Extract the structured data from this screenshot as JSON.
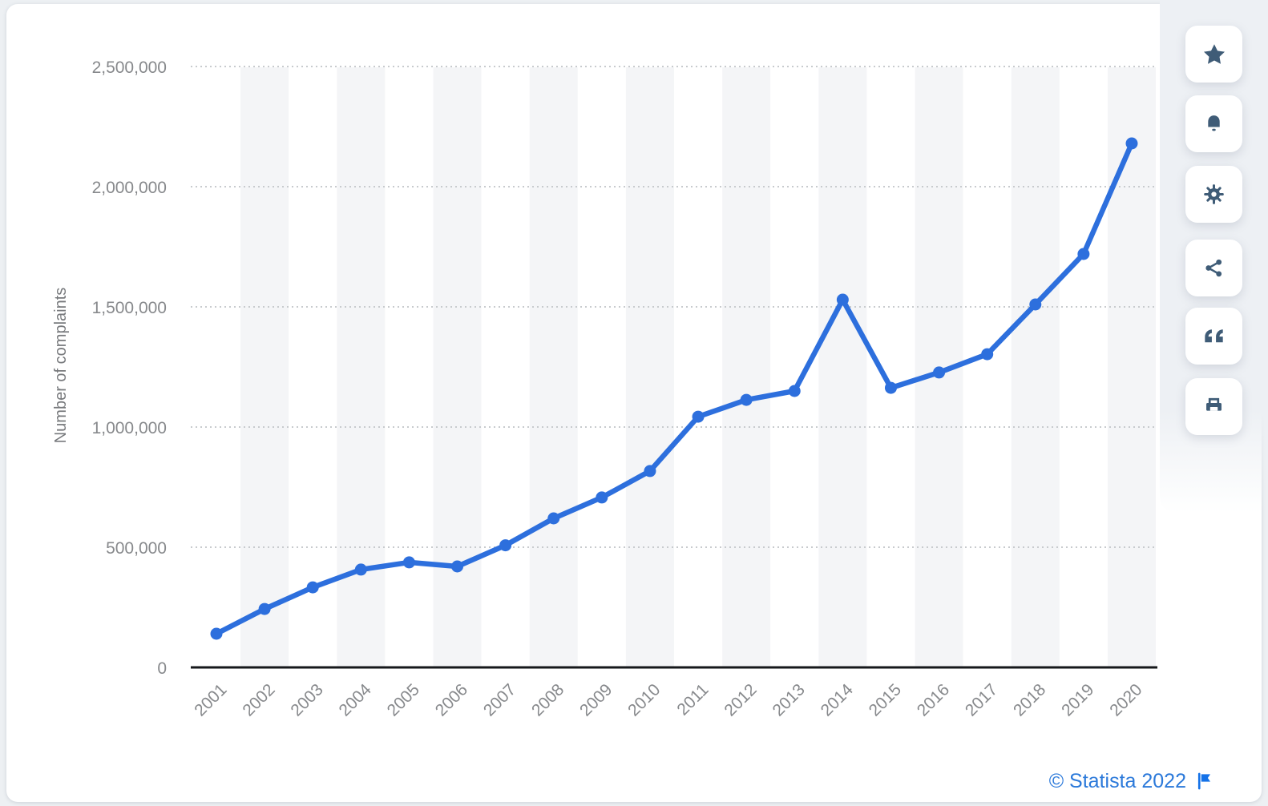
{
  "colors": {
    "page_background": "#edf0f3",
    "card_background": "#ffffff",
    "plot_band": "#f4f5f7",
    "gridline": "#c8cbce",
    "axis_line": "#16181b",
    "tick_label": "#87898c",
    "axis_title": "#77797c",
    "series_line": "#2d6fdd",
    "toolbar_icon": "#3f5c77",
    "footer_link": "#2b79da",
    "footer_flag": "#1472e8"
  },
  "chart_data": {
    "type": "line",
    "ylabel": "Number of complaints",
    "xlabel": "",
    "x_labels": [
      "2001",
      "2002",
      "2003",
      "2004",
      "2005",
      "2006",
      "2007",
      "2008",
      "2009",
      "2010",
      "2011",
      "2012",
      "2013",
      "2014",
      "2015",
      "2016",
      "2017",
      "2018",
      "2019",
      "2020"
    ],
    "series": [
      {
        "name": "Number of complaints",
        "values": [
          140000,
          243000,
          333000,
          407000,
          437000,
          420000,
          508000,
          620000,
          707000,
          817000,
          1043000,
          1113000,
          1150000,
          1530000,
          1163000,
          1227000,
          1303000,
          1510000,
          1720000,
          2180000
        ]
      }
    ],
    "ylim": [
      0,
      2500000
    ],
    "y_ticks": [
      {
        "value": 0,
        "label": "0"
      },
      {
        "value": 500000,
        "label": "500,000"
      },
      {
        "value": 1000000,
        "label": "1,000,000"
      },
      {
        "value": 1500000,
        "label": "1,500,000"
      },
      {
        "value": 2000000,
        "label": "2,000,000"
      },
      {
        "value": 2500000,
        "label": "2,500,000"
      }
    ],
    "grid": "horizontal-dotted",
    "legend": "none",
    "marker": "circle"
  },
  "toolbar": {
    "buttons": [
      {
        "id": "favorite",
        "icon": "star-icon"
      },
      {
        "id": "alerts",
        "icon": "bell-icon"
      },
      {
        "id": "settings",
        "icon": "gear-icon"
      },
      {
        "id": "share",
        "icon": "share-icon"
      },
      {
        "id": "cite",
        "icon": "quote-icon"
      },
      {
        "id": "print",
        "icon": "print-icon"
      }
    ]
  },
  "footer": {
    "copyright": "© Statista 2022"
  }
}
